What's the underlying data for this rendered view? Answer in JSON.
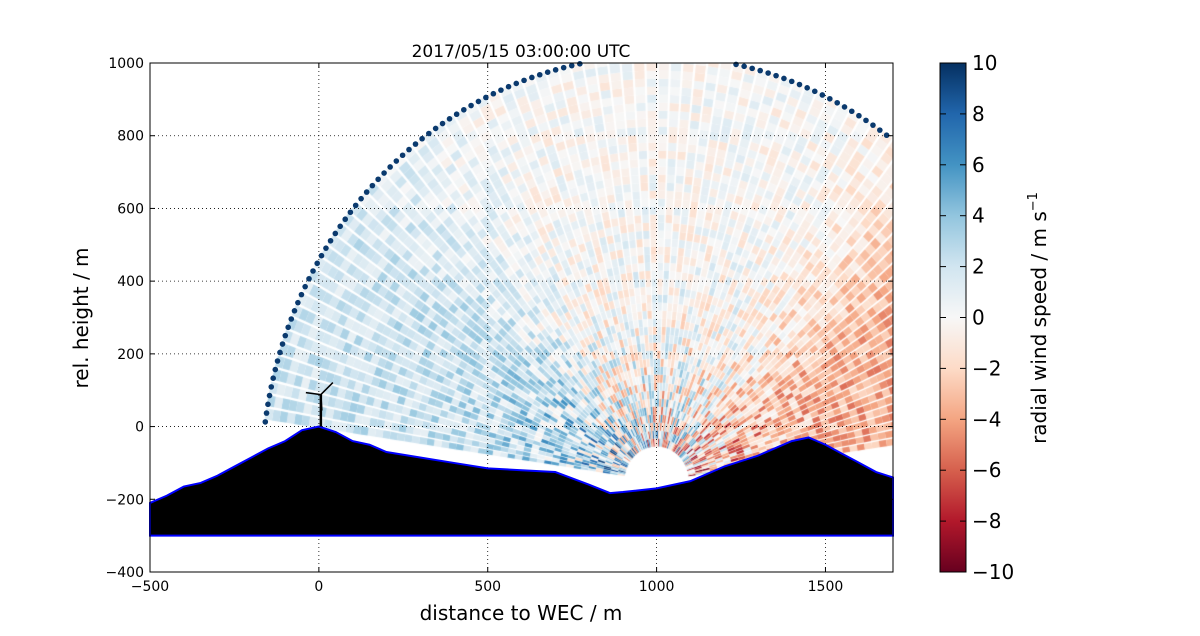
{
  "chart_data": {
    "type": "heatmap",
    "title": "2017/05/15 03:00:00 UTC",
    "xlabel": "distance to WEC / m",
    "ylabel": "rel. height / m",
    "xlim": [
      -500,
      1700
    ],
    "ylim": [
      -400,
      1000
    ],
    "xticks": [
      -500,
      0,
      500,
      1000,
      1500
    ],
    "xtick_labels": [
      "−500",
      "0",
      "500",
      "1000",
      "1500"
    ],
    "yticks": [
      -400,
      -200,
      0,
      200,
      400,
      600,
      800,
      1000
    ],
    "ytick_labels": [
      "−400",
      "−200",
      "0",
      "200",
      "400",
      "600",
      "800",
      "1000"
    ],
    "grid": true,
    "colorbar": {
      "label": "radial wind speed / m s",
      "label_superscript": "−1",
      "range": [
        -10,
        10
      ],
      "ticks": [
        10,
        8,
        6,
        4,
        2,
        0,
        -2,
        -4,
        -6,
        -8,
        -10
      ],
      "tick_labels": [
        "10",
        "8",
        "6",
        "4",
        "2",
        "0",
        "−2",
        "−4",
        "−6",
        "−8",
        "−10"
      ],
      "colors": [
        "#053061",
        "#2166ac",
        "#4393c3",
        "#92c5de",
        "#d1e5f0",
        "#f7f7f7",
        "#fddbc7",
        "#f4a582",
        "#d6604d",
        "#b2182b",
        "#67001f"
      ]
    },
    "scan": {
      "lidar_position": [
        1000,
        -150
      ],
      "min_range": 95,
      "max_range": 1170,
      "elevation_range_deg": [
        8,
        172
      ],
      "sectors": [
        {
          "elevation_deg": [
            120,
            172
          ],
          "mean_speed": 3
        },
        {
          "elevation_deg": [
            60,
            120
          ],
          "mean_speed": 0
        },
        {
          "elevation_deg": [
            8,
            55
          ],
          "mean_speed": -4
        }
      ]
    },
    "terrain": {
      "x": [
        -500,
        -450,
        -400,
        -350,
        -300,
        -250,
        -200,
        -150,
        -100,
        -50,
        0,
        50,
        100,
        150,
        200,
        300,
        400,
        500,
        600,
        700,
        800,
        862,
        900,
        1000,
        1100,
        1200,
        1300,
        1400,
        1450,
        1500,
        1550,
        1600,
        1650,
        1700
      ],
      "y": [
        -210,
        -190,
        -165,
        -155,
        -135,
        -110,
        -85,
        -60,
        -40,
        -10,
        0,
        -15,
        -40,
        -50,
        -70,
        -85,
        -100,
        -115,
        -120,
        -125,
        -160,
        -183,
        -180,
        -170,
        -150,
        -110,
        -80,
        -40,
        -30,
        -50,
        -75,
        -100,
        -125,
        -140
      ],
      "base": -300,
      "outline_color": "#0000ff"
    },
    "turbine_position": [
      0,
      0
    ],
    "range_marker_color": "#0b3a6e"
  }
}
